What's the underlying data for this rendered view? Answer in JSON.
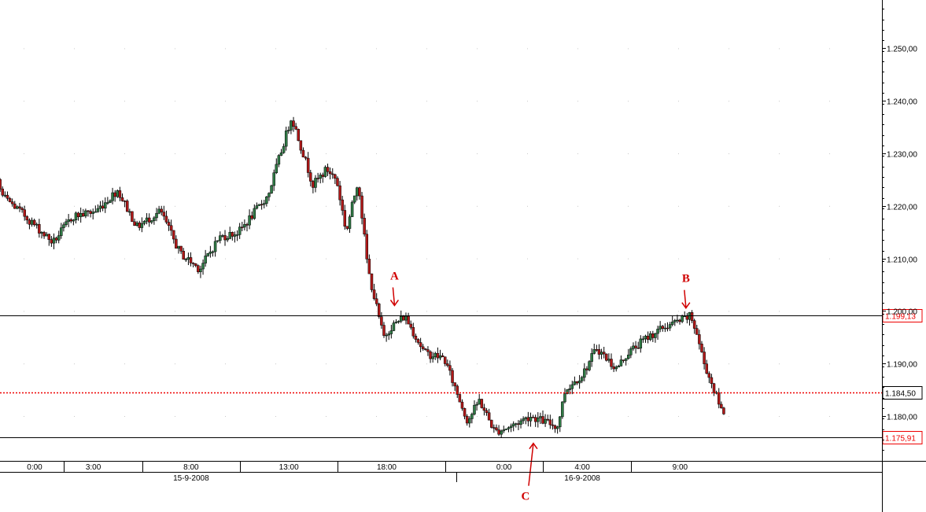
{
  "chart_data": {
    "type": "candlestick",
    "title": "",
    "xlabel": "",
    "ylabel": "",
    "ylim": [
      1.1735,
      1.2585
    ],
    "y_ticks": [
      "1.180,00",
      "1.190,00",
      "1.200,00",
      "1.210,00",
      "1.220,00",
      "1.230,00",
      "1.240,00",
      "1.250,00"
    ],
    "y_tick_values": [
      1.18,
      1.19,
      1.2,
      1.21,
      1.22,
      1.23,
      1.24,
      1.25
    ],
    "time_labels": [
      {
        "label": "0:00",
        "hour": 12
      },
      {
        "label": "3:00",
        "hour": 15
      },
      {
        "label": "8:00",
        "hour": 20
      },
      {
        "label": "13:00",
        "hour": 25
      },
      {
        "label": "18:00",
        "hour": 30
      },
      {
        "label": "0:00",
        "hour": 36
      },
      {
        "label": "4:00",
        "hour": 40
      },
      {
        "label": "9:00",
        "hour": 45
      }
    ],
    "date_labels": [
      {
        "label": "15-9-2008",
        "hour": 20
      },
      {
        "label": "16-9-2008",
        "hour": 40
      }
    ],
    "date_boundary_hours": [
      36
    ],
    "grid": "dotted",
    "price_path_hours": [
      8.3,
      9.7,
      10.4,
      11.6,
      13.0,
      14.0,
      15.2,
      16.3,
      17.3,
      18.5,
      19.5,
      20.5,
      21.5,
      22.5,
      24.0,
      25.2,
      26.3,
      27.0,
      27.5,
      28.0,
      28.6,
      29.1,
      29.9,
      30.3,
      31.0,
      32.0,
      33.0,
      34.2,
      34.8,
      35.6,
      36.4,
      37.4,
      38.8,
      39.2,
      40.1,
      40.8,
      41.8,
      42.4,
      43.4,
      44.3,
      45.3,
      45.6,
      45.9,
      46.3,
      47.2
    ],
    "price_path_values": [
      1.228,
      1.23,
      1.222,
      1.218,
      1.213,
      1.218,
      1.219,
      1.223,
      1.216,
      1.219,
      1.211,
      1.208,
      1.214,
      1.215,
      1.222,
      1.237,
      1.224,
      1.227,
      1.225,
      1.215,
      1.225,
      1.208,
      1.195,
      1.197,
      1.199,
      1.192,
      1.191,
      1.179,
      1.183,
      1.177,
      1.178,
      1.18,
      1.178,
      1.185,
      1.188,
      1.193,
      1.189,
      1.192,
      1.195,
      1.197,
      1.1985,
      1.199,
      1.196,
      1.19,
      1.181
    ],
    "horizontal_levels": [
      {
        "value": 1.19913,
        "label": "1.199,13",
        "style": "solid",
        "line_color": "#000000",
        "badge_color": "#ee0000"
      },
      {
        "value": 1.1845,
        "label": "1.184,50",
        "style": "dotted",
        "line_color": "#ee0000",
        "badge_color": "#000000"
      },
      {
        "value": 1.17591,
        "label": "1.175,91",
        "style": "solid",
        "line_color": "#000000",
        "badge_color": "#ee0000"
      }
    ],
    "annotations": [
      {
        "label": "A",
        "hour": 30.4,
        "value": 1.2,
        "direction": "down"
      },
      {
        "label": "B",
        "hour": 45.3,
        "value": 1.1995,
        "direction": "down"
      },
      {
        "label": "C",
        "hour": 37.5,
        "value": 1.1757,
        "direction": "up"
      }
    ]
  },
  "colors": {
    "up_candle": "#2f7a45",
    "down_candle": "#b01818",
    "wick": "#000000",
    "grid_dot": "#c8c8c8",
    "annotation": "#d00000"
  }
}
